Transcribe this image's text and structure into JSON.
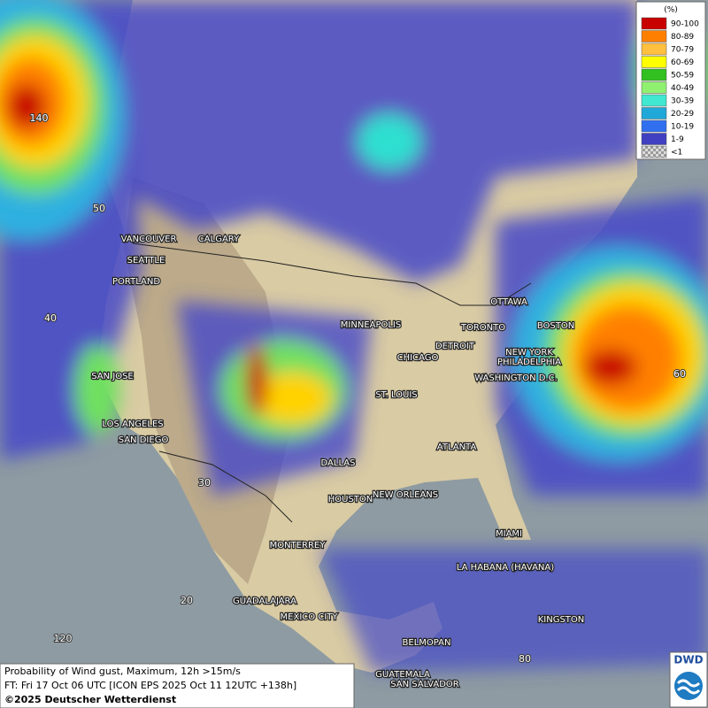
{
  "legend": {
    "unit": "(%)",
    "items": [
      {
        "label": "90-100",
        "color": "#c80000"
      },
      {
        "label": "80-89",
        "color": "#ff8000"
      },
      {
        "label": "70-79",
        "color": "#ffc040"
      },
      {
        "label": "60-69",
        "color": "#ffff00"
      },
      {
        "label": "50-59",
        "color": "#30c020"
      },
      {
        "label": "40-49",
        "color": "#90f070"
      },
      {
        "label": "30-39",
        "color": "#40e8d0"
      },
      {
        "label": "20-29",
        "color": "#20a8d8"
      },
      {
        "label": "10-19",
        "color": "#3070f0"
      },
      {
        "label": "1-9",
        "color": "#4040c0"
      },
      {
        "label": "<1",
        "color": "url(#chk)"
      }
    ]
  },
  "cities": [
    "VANCOUVER",
    "CALGARY",
    "SEATTLE",
    "PORTLAND",
    "MINNEAPOLIS",
    "OTTAWA",
    "TORONTO",
    "BOSTON",
    "DETROIT",
    "CHICAGO",
    "NEW YORK",
    "PHILADELPHIA",
    "WASHINGTON D.C.",
    "SAN JOSE",
    "ST. LOUIS",
    "LOS ANGELES",
    "SAN DIEGO",
    "ATLANTA",
    "DALLAS",
    "HOUSTON",
    "NEW ORLEANS",
    "MIAMI",
    "MONTERREY",
    "LA HABANA (HAVANA)",
    "GUADALAJARA",
    "MEXICO CITY",
    "KINGSTON",
    "BELMOPAN",
    "GUATEMALA",
    "SAN SALVADOR"
  ],
  "graticule_labels": [
    "140",
    "50",
    "40",
    "30",
    "20",
    "120",
    "60",
    "80"
  ],
  "footer": {
    "line1": "Probability of Wind gust, Maximum, 12h >15m/s",
    "line2": "FT: Fri 17 Oct 06 UTC [ICON EPS 2025 Oct 11 12UTC +138h]",
    "line3": "©2025 Deutscher Wetterdienst"
  },
  "logo": "DWD"
}
